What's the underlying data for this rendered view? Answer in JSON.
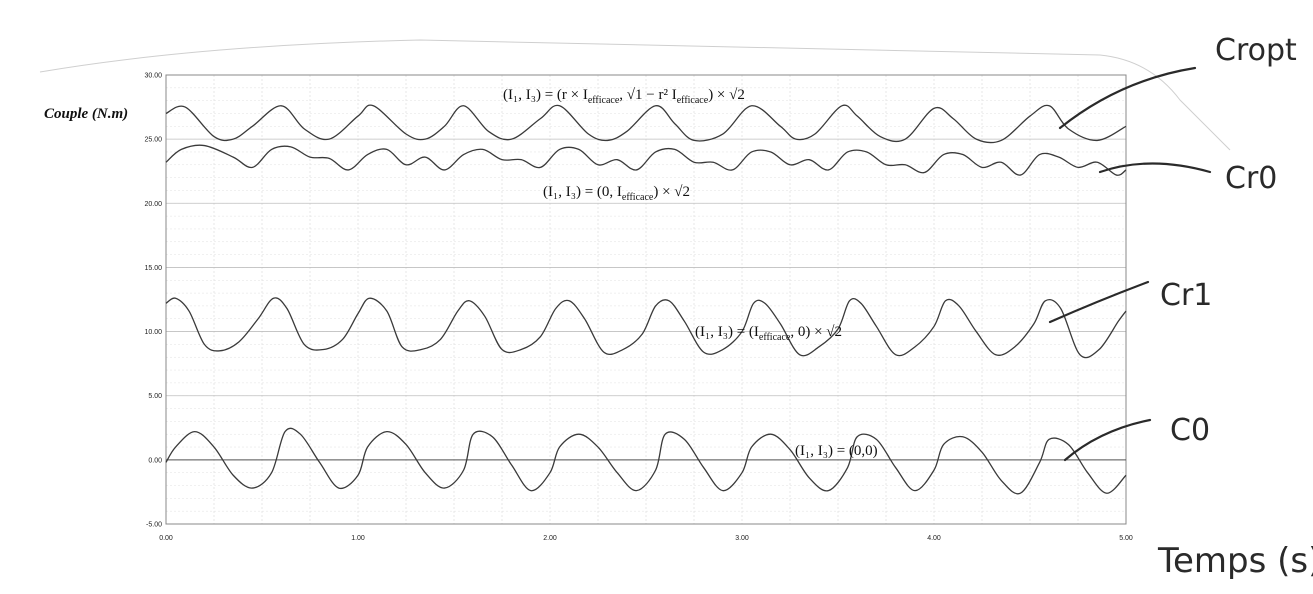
{
  "chart_data": {
    "type": "line",
    "ylabel": "Couple (N.m)",
    "xlabel": "Temps (s)",
    "xlim": [
      0,
      5
    ],
    "ylim": [
      -5,
      30
    ],
    "x_ticks": [
      "0.00",
      "1.00",
      "2.00",
      "3.00",
      "4.00",
      "5.00"
    ],
    "y_ticks": [
      "-5.00",
      "0.00",
      "5.00",
      "10.00",
      "15.00",
      "20.00",
      "25.00",
      "30.00"
    ],
    "grid": true,
    "legend": "handwritten labels on right",
    "series": [
      {
        "name": "Cropt",
        "annotation": "(I₁, I₃) = (r × I_efficace, √(1 − r²) I_efficace) × √2",
        "x": [
          0.0,
          0.1,
          0.25,
          0.35,
          0.45,
          0.6,
          0.72,
          0.85,
          1.0,
          1.08,
          1.25,
          1.35,
          1.45,
          1.55,
          1.68,
          1.8,
          1.95,
          2.05,
          2.2,
          2.3,
          2.4,
          2.55,
          2.65,
          2.75,
          2.9,
          3.05,
          3.2,
          3.28,
          3.38,
          3.52,
          3.6,
          3.72,
          3.85,
          4.0,
          4.1,
          4.22,
          4.35,
          4.5,
          4.6,
          4.7,
          4.85,
          5.0
        ],
        "y": [
          27.0,
          27.5,
          25.2,
          25.0,
          26.0,
          27.6,
          25.8,
          25.0,
          26.8,
          27.6,
          25.4,
          25.0,
          26.0,
          27.6,
          25.6,
          25.0,
          26.6,
          27.6,
          25.4,
          24.9,
          25.6,
          27.6,
          26.2,
          24.9,
          25.4,
          27.6,
          26.0,
          25.0,
          25.4,
          27.6,
          26.8,
          25.2,
          25.0,
          27.4,
          26.6,
          25.0,
          24.9,
          26.8,
          27.6,
          25.8,
          24.9,
          26.0
        ]
      },
      {
        "name": "Cr0",
        "annotation": "(I₁, I₃) = (0, I_efficace) × √2",
        "x": [
          0.0,
          0.08,
          0.2,
          0.35,
          0.45,
          0.55,
          0.65,
          0.75,
          0.85,
          0.95,
          1.05,
          1.15,
          1.25,
          1.35,
          1.45,
          1.55,
          1.65,
          1.75,
          1.85,
          1.95,
          2.05,
          2.15,
          2.25,
          2.35,
          2.45,
          2.55,
          2.65,
          2.75,
          2.85,
          2.95,
          3.05,
          3.15,
          3.25,
          3.35,
          3.45,
          3.55,
          3.65,
          3.75,
          3.85,
          3.95,
          4.05,
          4.15,
          4.25,
          4.35,
          4.45,
          4.55,
          4.65,
          4.75,
          4.85,
          4.95,
          5.0
        ],
        "y": [
          23.2,
          24.2,
          24.5,
          23.6,
          22.8,
          24.2,
          24.4,
          23.6,
          23.5,
          22.6,
          23.8,
          24.2,
          23.0,
          23.6,
          22.6,
          23.8,
          24.2,
          23.4,
          23.4,
          22.8,
          24.2,
          24.2,
          23.0,
          23.4,
          22.6,
          24.0,
          24.2,
          23.2,
          23.2,
          22.6,
          24.0,
          24.0,
          23.0,
          23.4,
          22.6,
          24.0,
          24.0,
          23.0,
          23.0,
          22.4,
          23.8,
          23.8,
          22.8,
          23.2,
          22.2,
          23.8,
          23.6,
          22.8,
          23.2,
          22.2,
          22.6
        ]
      },
      {
        "name": "Cr1",
        "annotation": "(I₁, I₃) = (I_efficace, 0) × √2",
        "x": [
          0.0,
          0.05,
          0.12,
          0.2,
          0.28,
          0.38,
          0.48,
          0.56,
          0.63,
          0.72,
          0.82,
          0.92,
          1.0,
          1.06,
          1.15,
          1.23,
          1.33,
          1.43,
          1.52,
          1.58,
          1.66,
          1.75,
          1.85,
          1.95,
          2.03,
          2.1,
          2.18,
          2.28,
          2.38,
          2.48,
          2.55,
          2.62,
          2.7,
          2.8,
          2.9,
          3.0,
          3.06,
          3.12,
          3.2,
          3.3,
          3.4,
          3.5,
          3.56,
          3.62,
          3.7,
          3.8,
          3.9,
          4.0,
          4.06,
          4.13,
          4.22,
          4.32,
          4.42,
          4.52,
          4.58,
          4.66,
          4.76,
          4.86,
          4.96,
          5.0
        ],
        "y": [
          12.2,
          12.6,
          11.6,
          9.0,
          8.5,
          9.2,
          11.0,
          12.6,
          11.8,
          9.0,
          8.6,
          9.4,
          11.4,
          12.6,
          11.6,
          8.8,
          8.6,
          9.4,
          11.6,
          12.4,
          11.2,
          8.6,
          8.6,
          9.6,
          11.8,
          12.4,
          11.0,
          8.4,
          8.6,
          9.8,
          12.0,
          12.4,
          10.8,
          8.4,
          8.6,
          10.0,
          12.2,
          12.2,
          10.6,
          8.2,
          8.8,
          10.2,
          12.4,
          12.2,
          10.4,
          8.2,
          8.8,
          10.4,
          12.4,
          12.0,
          10.0,
          8.2,
          8.8,
          10.6,
          12.4,
          11.8,
          8.2,
          8.6,
          10.8,
          11.6
        ]
      },
      {
        "name": "C0",
        "annotation": "(I₁, I₃) = (0,0)",
        "x": [
          0.0,
          0.05,
          0.15,
          0.25,
          0.35,
          0.45,
          0.55,
          0.62,
          0.7,
          0.8,
          0.9,
          1.0,
          1.05,
          1.15,
          1.25,
          1.35,
          1.45,
          1.55,
          1.6,
          1.7,
          1.8,
          1.9,
          2.0,
          2.05,
          2.15,
          2.25,
          2.35,
          2.45,
          2.55,
          2.6,
          2.7,
          2.8,
          2.9,
          3.0,
          3.05,
          3.15,
          3.25,
          3.35,
          3.45,
          3.55,
          3.6,
          3.7,
          3.8,
          3.9,
          4.0,
          4.05,
          4.15,
          4.25,
          4.35,
          4.45,
          4.55,
          4.6,
          4.7,
          4.8,
          4.9,
          5.0
        ],
        "y": [
          -0.2,
          1.0,
          2.2,
          1.0,
          -1.2,
          -2.2,
          -1.0,
          2.2,
          2.0,
          -0.2,
          -2.2,
          -1.2,
          1.0,
          2.2,
          1.2,
          -1.0,
          -2.2,
          -0.8,
          2.0,
          1.8,
          -0.4,
          -2.4,
          -1.0,
          1.0,
          2.0,
          1.0,
          -1.0,
          -2.4,
          -0.8,
          2.0,
          1.6,
          -0.6,
          -2.4,
          -1.0,
          1.0,
          2.0,
          0.8,
          -1.4,
          -2.4,
          -0.6,
          1.8,
          1.6,
          -0.6,
          -2.4,
          -0.8,
          1.2,
          1.8,
          0.6,
          -1.6,
          -2.6,
          -0.2,
          1.6,
          1.2,
          -1.0,
          -2.6,
          -1.2
        ]
      }
    ]
  },
  "formulas": {
    "cropt": "(I₁, I₃) = (r × I",
    "cropt_sub1": "efficace",
    "cropt_mid": ", √1 − r² I",
    "cropt_sub2": "efficace",
    "cropt_end": ") × √2",
    "cr0": "(I₁, I₃) = (0, I",
    "cr0_sub": "efficace",
    "cr0_end": ") × √2",
    "cr1": "(I₁, I₃) = (I",
    "cr1_sub": "efficace",
    "cr1_end": ", 0) × √2",
    "c0": "(I₁, I₃) = (0,0)"
  },
  "colors": {
    "curve": "#3a3a3a",
    "grid": "#cfcfcf",
    "axis": "#555555"
  }
}
